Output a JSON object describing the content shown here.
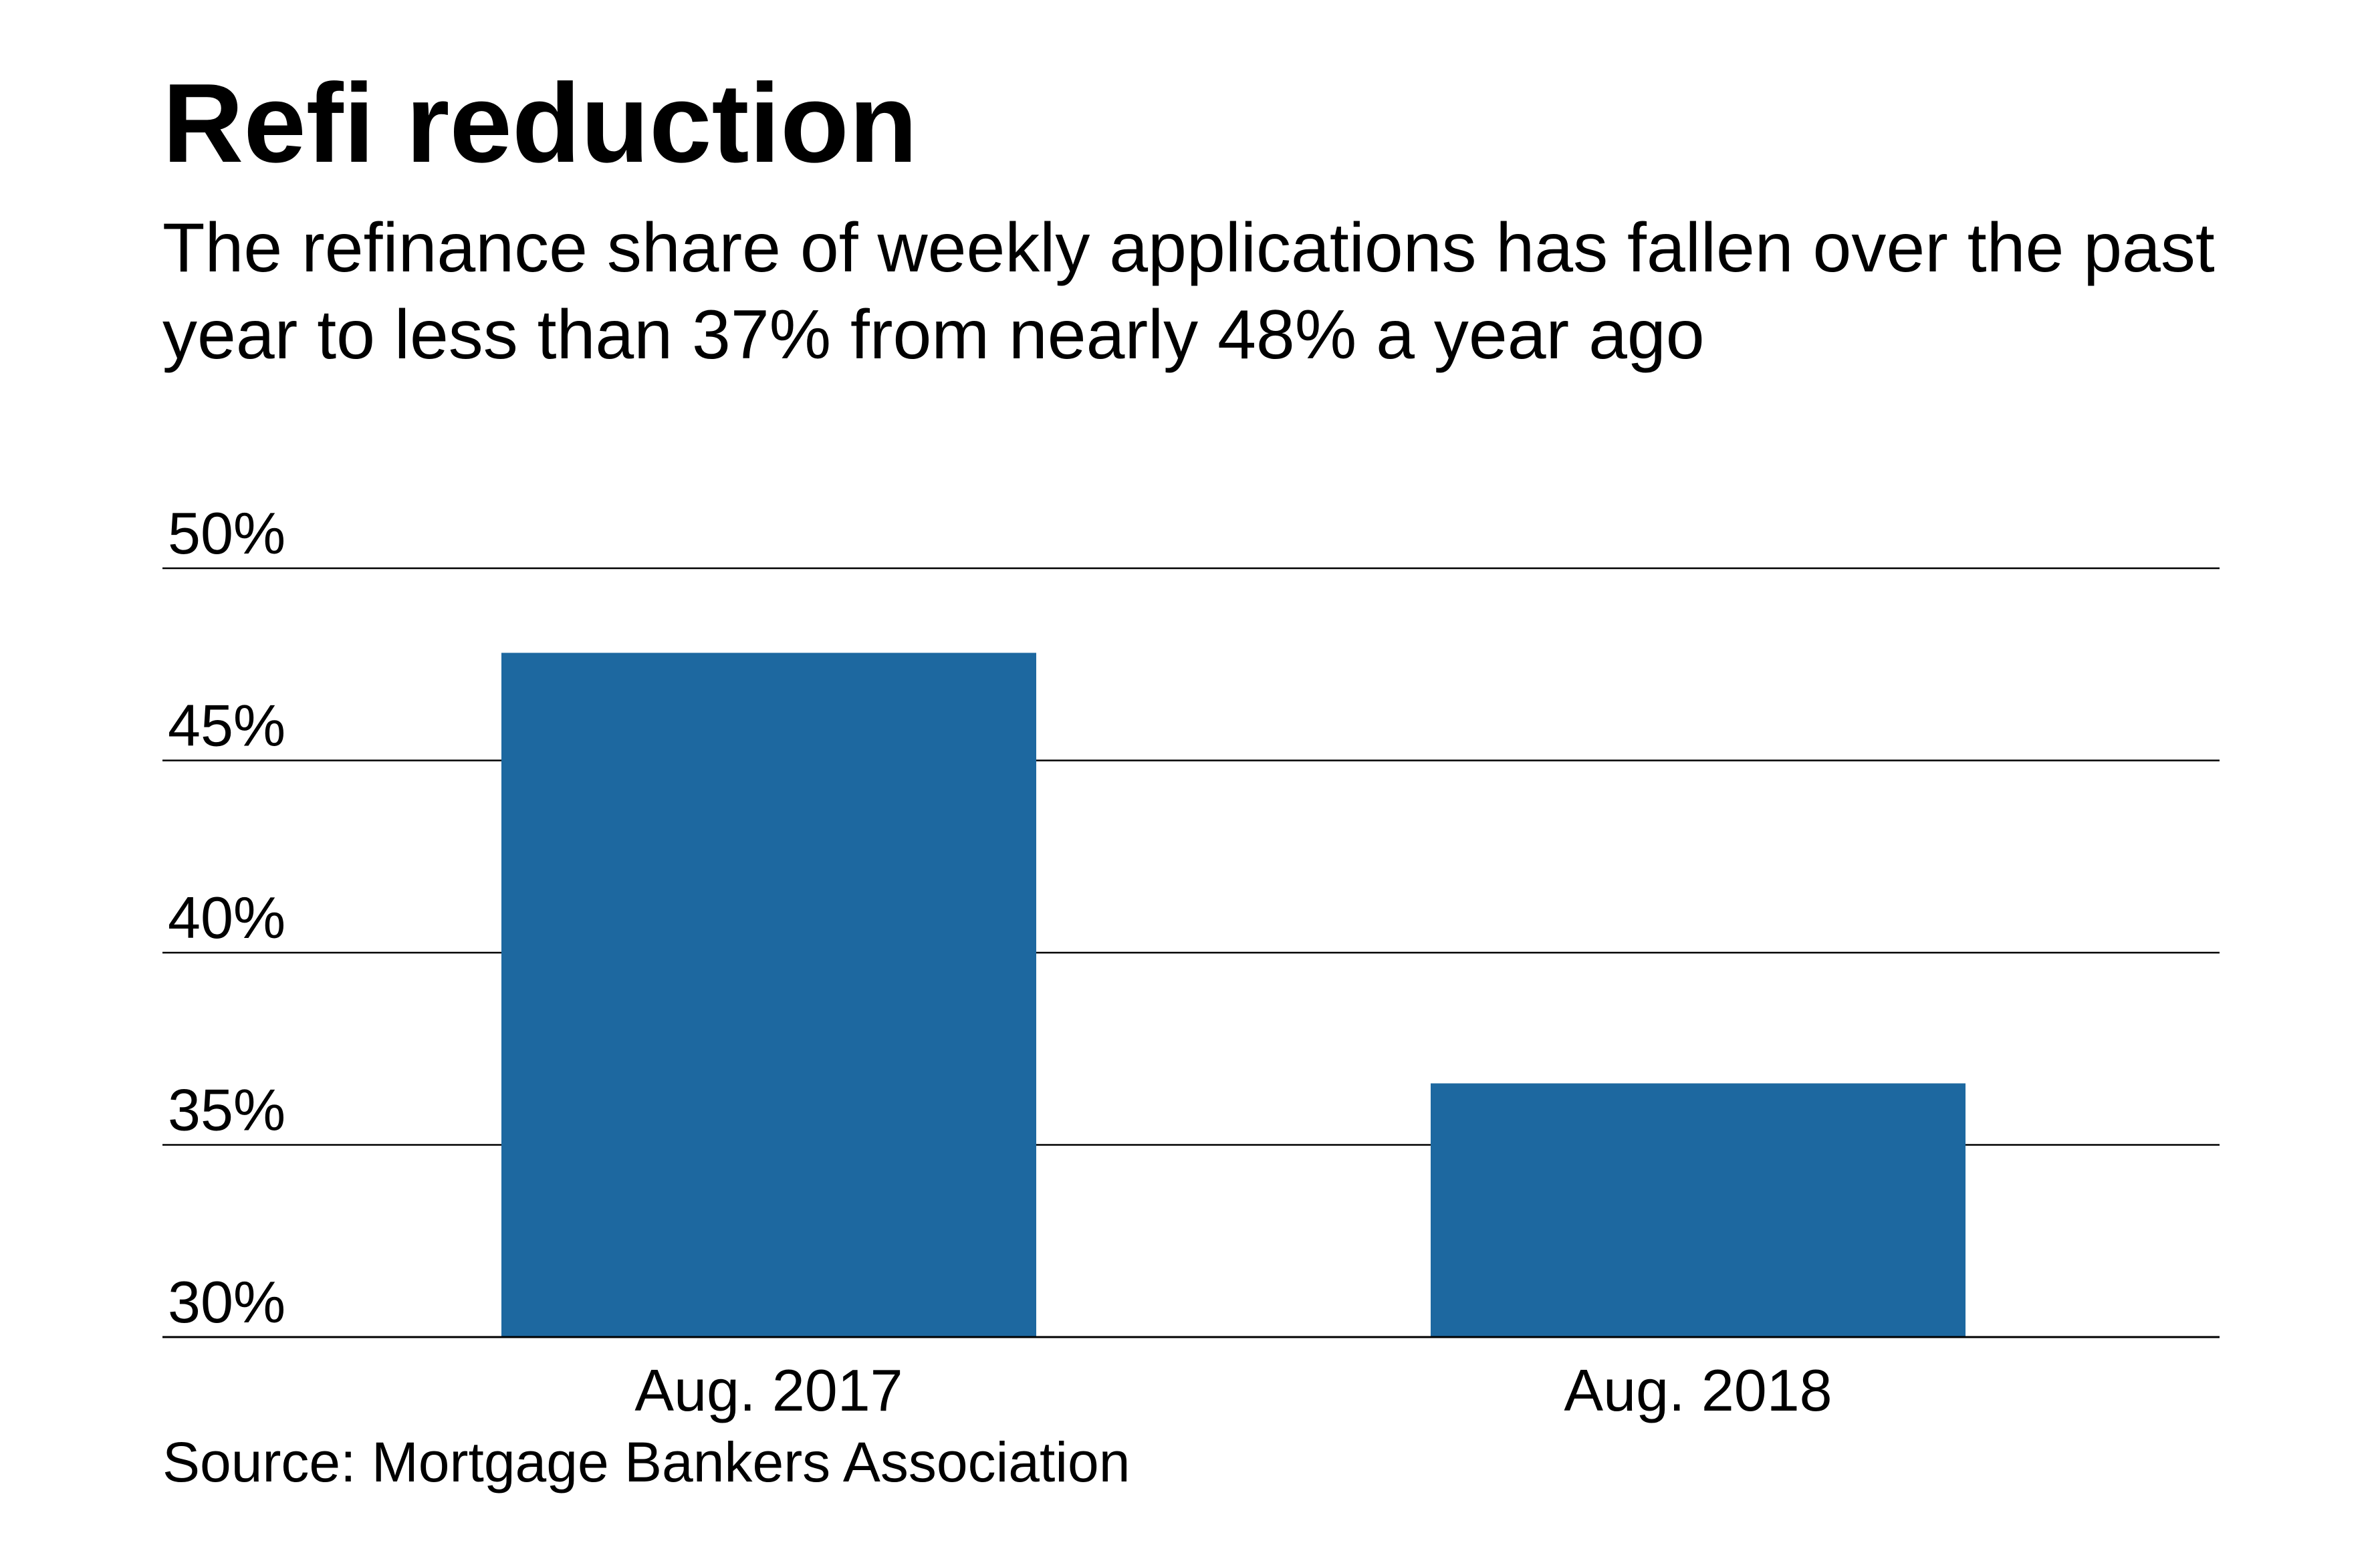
{
  "title": "Refi reduction",
  "subtitle": "The refinance share of weekly applications has fallen over the past year to less than 37% from nearly 48% a year ago",
  "source": "Source: Mortgage Bankers Association",
  "colors": {
    "bar": "#1d68a0",
    "grid": "#000000",
    "text": "#000000"
  },
  "chart_data": {
    "type": "bar",
    "title": "Refi reduction",
    "subtitle": "The refinance share of weekly applications has fallen over the past year to less than 37% from nearly 48% a year ago",
    "categories": [
      "Aug. 2017",
      "Aug. 2018"
    ],
    "values": [
      47.8,
      36.6
    ],
    "ylim": [
      30,
      50
    ],
    "yticks": [
      30,
      35,
      40,
      45,
      50
    ],
    "ytick_labels": [
      "30%",
      "35%",
      "40%",
      "45%",
      "50%"
    ],
    "grid": true,
    "xlabel": "",
    "ylabel": ""
  }
}
